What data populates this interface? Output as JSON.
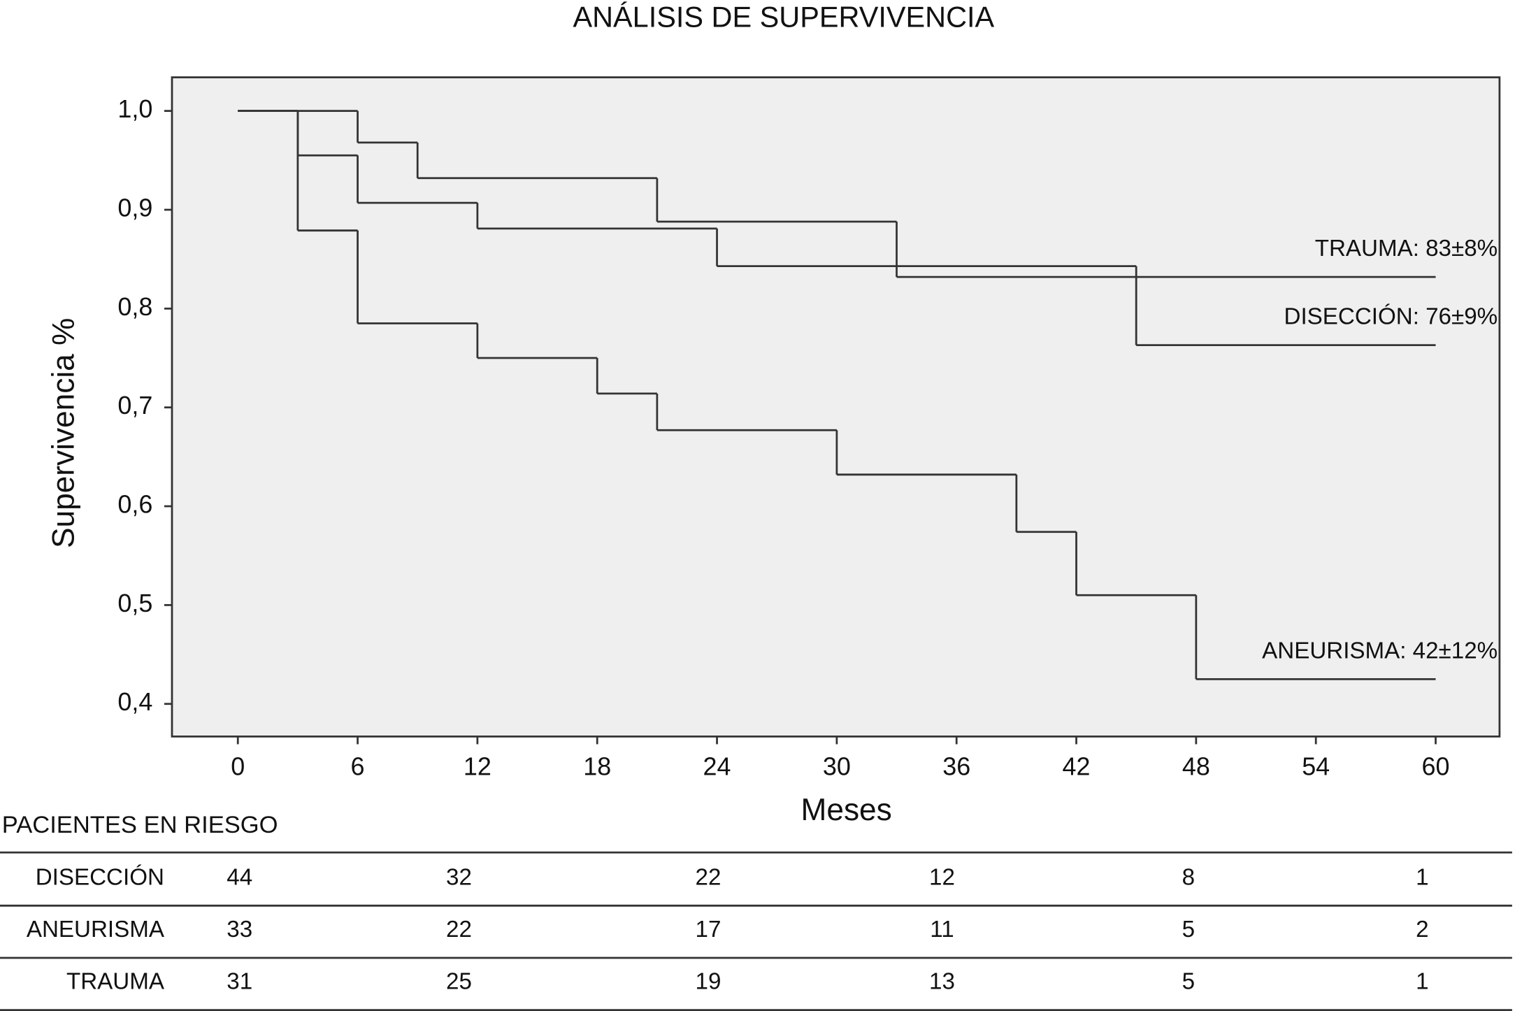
{
  "chart_data": {
    "type": "step",
    "title": "ANÁLISIS DE SUPERVIVENCIA",
    "x_label": "Meses",
    "y_label": "Supervivencia %",
    "xlim": [
      -3.3,
      63.2
    ],
    "ylim": [
      0.367,
      1.034
    ],
    "xticks": [
      0,
      6,
      12,
      18,
      24,
      30,
      36,
      42,
      48,
      54,
      60
    ],
    "yticks": [
      {
        "value": 1.0,
        "label": "1,0"
      },
      {
        "value": 0.9,
        "label": "0,9"
      },
      {
        "value": 0.8,
        "label": "0,8"
      },
      {
        "value": 0.7,
        "label": "0,7"
      },
      {
        "value": 0.6,
        "label": "0,6"
      },
      {
        "value": 0.5,
        "label": "0,5"
      },
      {
        "value": 0.4,
        "label": "0,4"
      }
    ],
    "background": "#efefef",
    "series": [
      {
        "label": "TRAUMA: 83±8%",
        "color": "#333333",
        "x": [
          0,
          6,
          9,
          21,
          33,
          60
        ],
        "values": [
          1.0,
          0.968,
          0.932,
          0.888,
          0.832,
          0.832
        ]
      },
      {
        "label": "DISECCIÓN: 76±9%",
        "color": "#333333",
        "x": [
          0,
          3,
          6,
          12,
          24,
          45,
          60
        ],
        "values": [
          1.0,
          0.955,
          0.907,
          0.881,
          0.843,
          0.763,
          0.763
        ]
      },
      {
        "label": "ANEURISMA: 42±12%",
        "color": "#333333",
        "x": [
          0,
          3,
          6,
          12,
          18,
          21,
          30,
          39,
          42,
          48,
          60
        ],
        "values": [
          1.0,
          0.879,
          0.785,
          0.75,
          0.714,
          0.677,
          0.632,
          0.574,
          0.51,
          0.425,
          0.425
        ]
      }
    ],
    "risk_table": {
      "title": "PACIENTES EN RIESGO",
      "rows": [
        {
          "label": "DISECCIÓN",
          "values": [
            44,
            32,
            22,
            12,
            8,
            1
          ]
        },
        {
          "label": "ANEURISMA",
          "values": [
            33,
            22,
            17,
            11,
            5,
            2
          ]
        },
        {
          "label": "TRAUMA",
          "values": [
            31,
            25,
            19,
            13,
            5,
            1
          ]
        }
      ]
    }
  }
}
